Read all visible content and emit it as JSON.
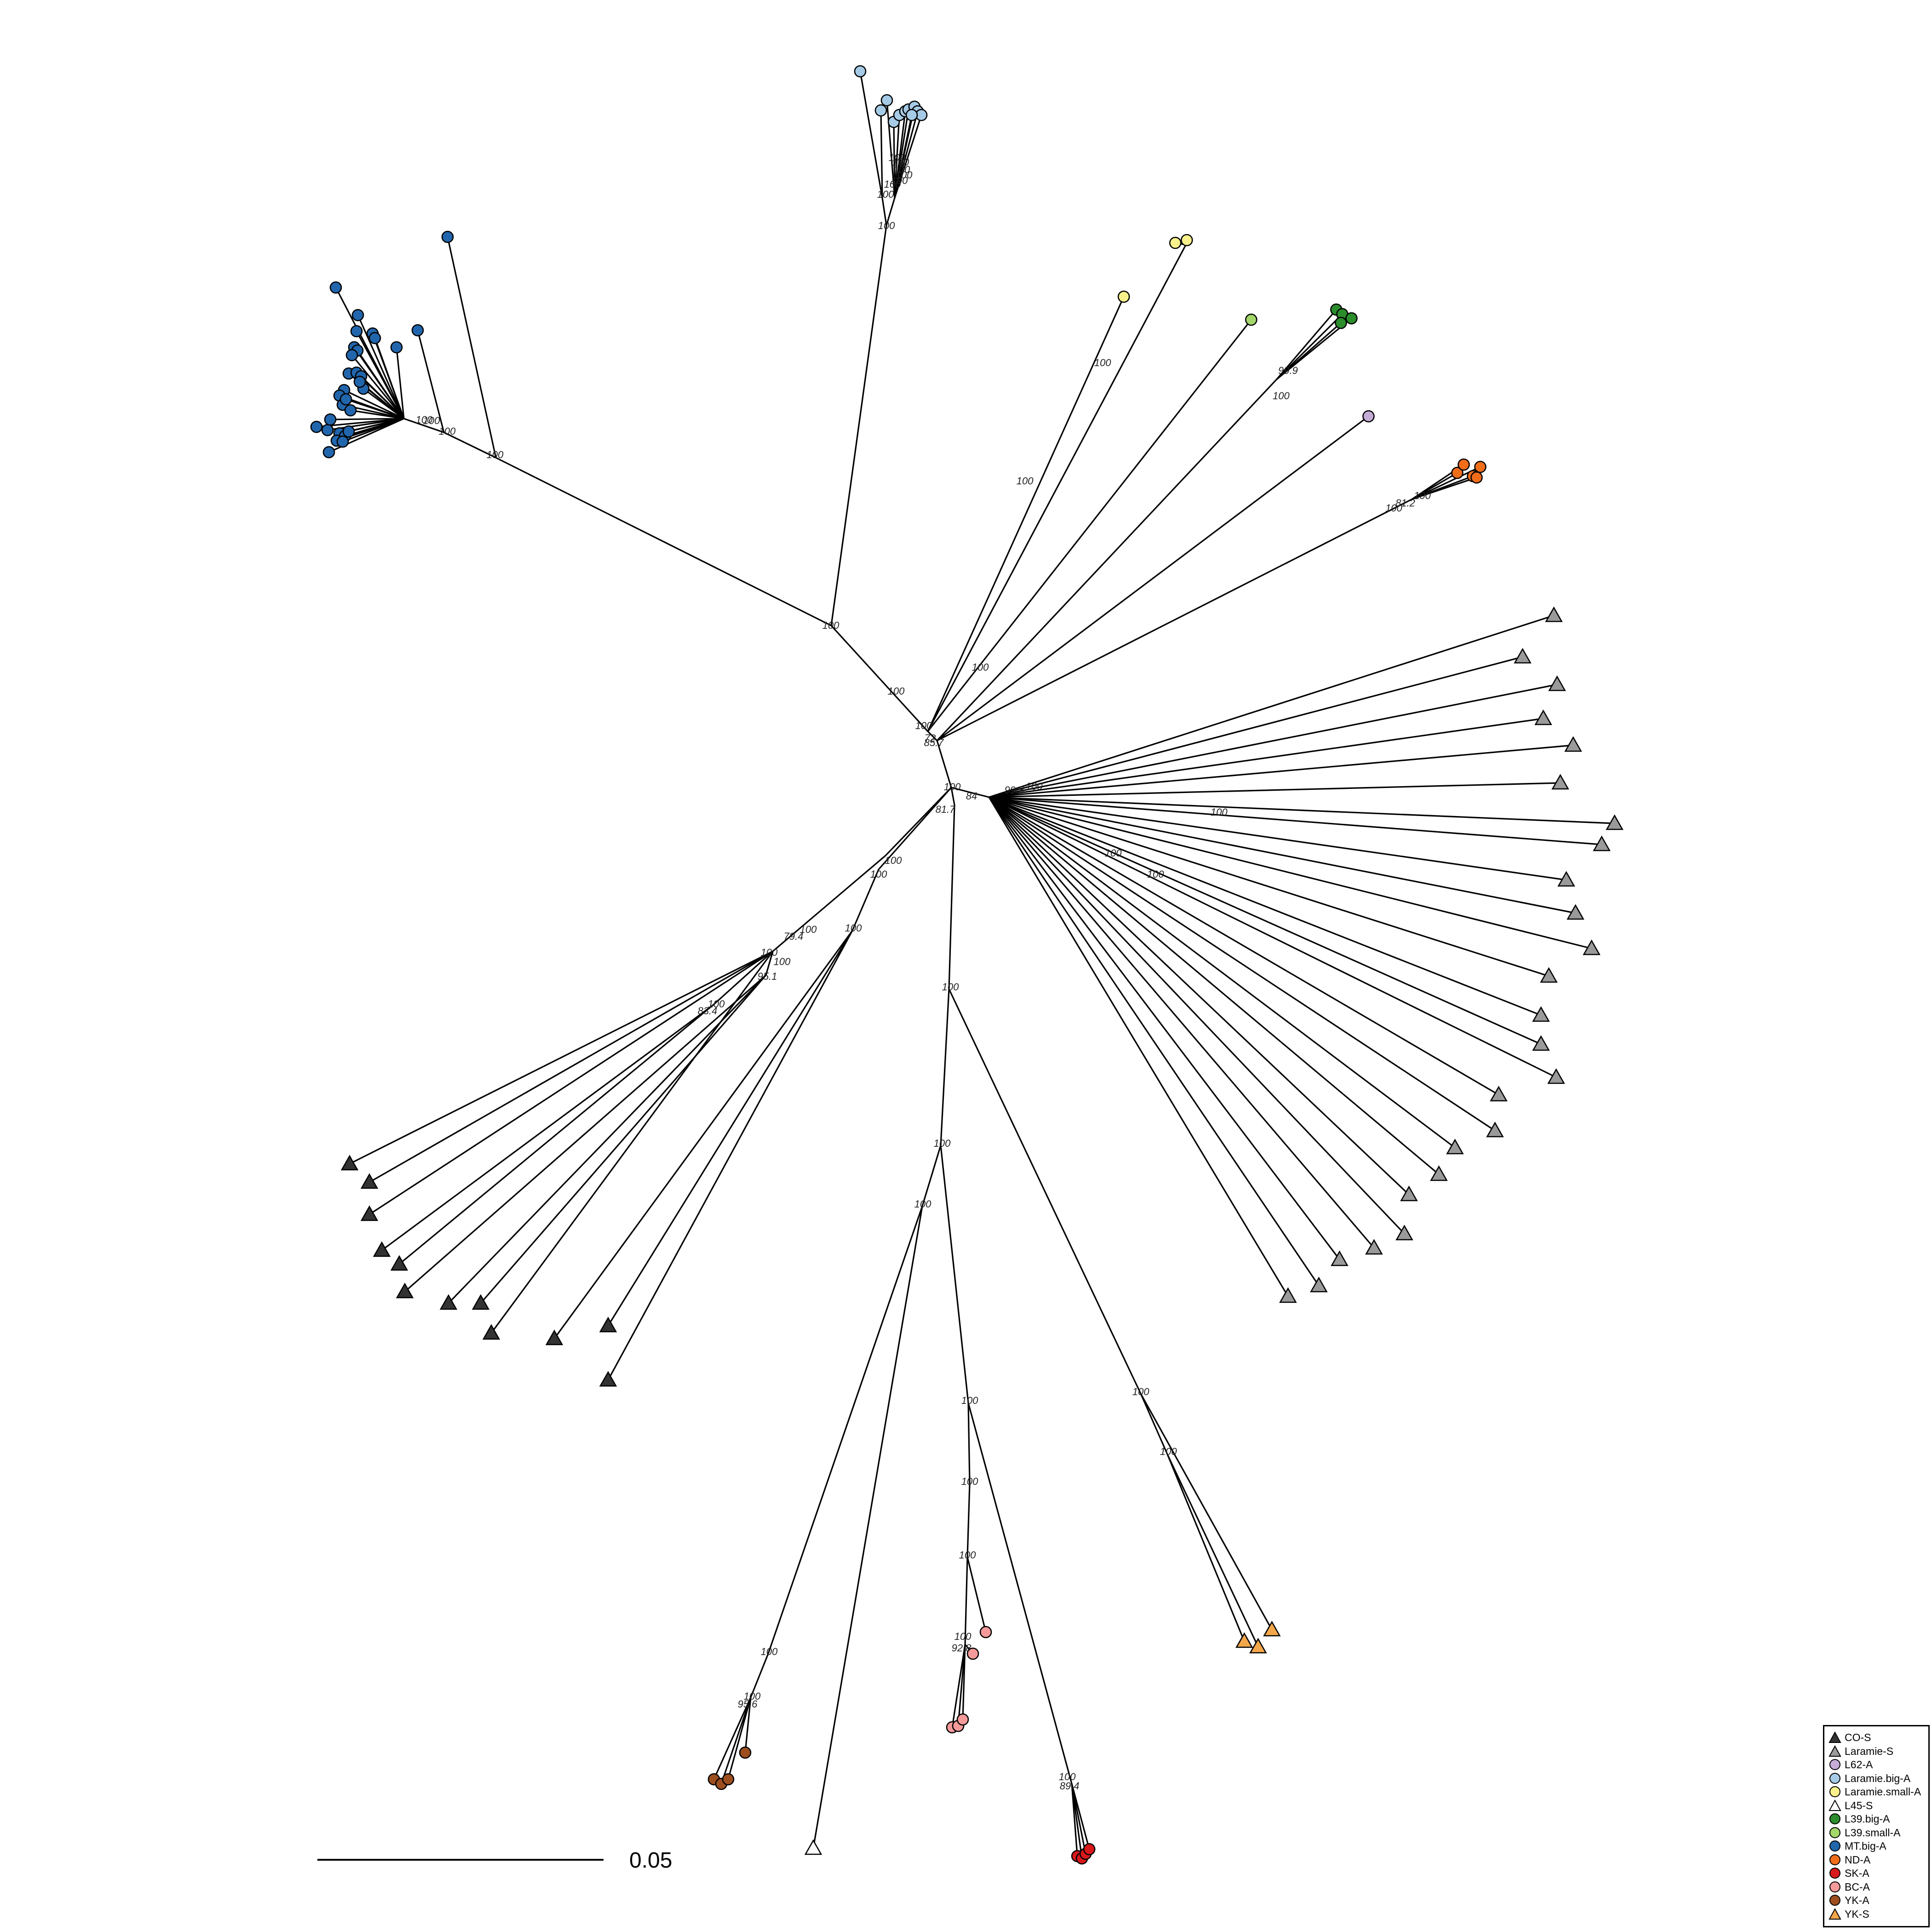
{
  "legend": {
    "items": [
      {
        "label": "CO-S",
        "color": "#333333",
        "shape": "triangle"
      },
      {
        "label": "Laramie-S",
        "color": "#9a9a9a",
        "shape": "triangle"
      },
      {
        "label": "L62-A",
        "color": "#c5acd6",
        "shape": "circle"
      },
      {
        "label": "Laramie.big-A",
        "color": "#a6cbe6",
        "shape": "circle"
      },
      {
        "label": "Laramie.small-A",
        "color": "#f9f28c",
        "shape": "circle"
      },
      {
        "label": "L45-S",
        "color": "#ffffff",
        "shape": "triangle"
      },
      {
        "label": "L39.big-A",
        "color": "#2b8d2b",
        "shape": "circle"
      },
      {
        "label": "L39.small-A",
        "color": "#a3d76a",
        "shape": "circle"
      },
      {
        "label": "MT.big-A",
        "color": "#2166ac",
        "shape": "circle"
      },
      {
        "label": "ND-A",
        "color": "#f06d1a",
        "shape": "circle"
      },
      {
        "label": "SK-A",
        "color": "#d7191c",
        "shape": "circle"
      },
      {
        "label": "BC-A",
        "color": "#f59a9a",
        "shape": "circle"
      },
      {
        "label": "YK-A",
        "color": "#9c4e1e",
        "shape": "circle"
      },
      {
        "label": "YK-S",
        "color": "#f4a74a",
        "shape": "triangle"
      }
    ]
  },
  "scale_bar": {
    "label": "0.05"
  },
  "bootstrap_labels": [
    "100",
    "99.9",
    "81.2",
    "72",
    "85.7",
    "84",
    "99.3",
    "81.7",
    "79.4",
    "95.1",
    "83.4",
    "92.8",
    "95.6",
    "89.4",
    "98.9",
    "89.8"
  ]
}
